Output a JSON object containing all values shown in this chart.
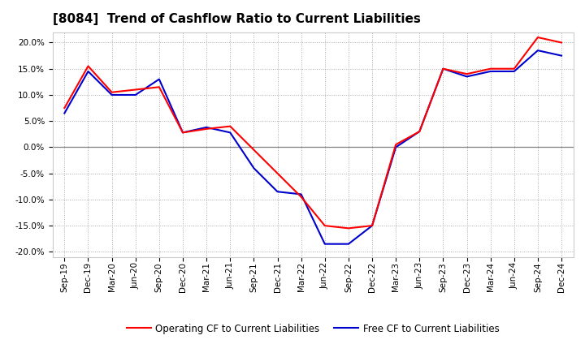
{
  "title": "[8084]  Trend of Cashflow Ratio to Current Liabilities",
  "x_labels": [
    "Sep-19",
    "Dec-19",
    "Mar-20",
    "Jun-20",
    "Sep-20",
    "Dec-20",
    "Mar-21",
    "Jun-21",
    "Sep-21",
    "Dec-21",
    "Mar-22",
    "Jun-22",
    "Sep-22",
    "Dec-22",
    "Mar-23",
    "Jun-23",
    "Sep-23",
    "Dec-23",
    "Mar-24",
    "Jun-24",
    "Sep-24",
    "Dec-24"
  ],
  "operating_cf": [
    7.5,
    15.5,
    10.5,
    11.0,
    11.5,
    2.8,
    3.5,
    4.0,
    -0.5,
    -5.0,
    -9.5,
    -15.0,
    -15.5,
    -15.0,
    0.5,
    3.0,
    15.0,
    14.0,
    15.0,
    15.0,
    21.0,
    20.0
  ],
  "free_cf": [
    6.5,
    14.5,
    10.0,
    10.0,
    13.0,
    2.8,
    3.8,
    2.8,
    -4.0,
    -8.5,
    -9.0,
    -18.5,
    -18.5,
    -15.0,
    0.0,
    3.0,
    15.0,
    13.5,
    14.5,
    14.5,
    18.5,
    17.5
  ],
  "ylim": [
    -21,
    22
  ],
  "yticks": [
    -20,
    -15,
    -10,
    -5,
    0,
    5,
    10,
    15,
    20
  ],
  "operating_color": "#FF0000",
  "free_color": "#0000CC",
  "line_width": 1.5,
  "background_color": "#FFFFFF",
  "plot_bg_color": "#FFFFFF",
  "grid_color": "#AAAAAA",
  "zero_line_color": "#808080",
  "title_fontsize": 11,
  "tick_fontsize": 7.5,
  "legend_fontsize": 8.5
}
